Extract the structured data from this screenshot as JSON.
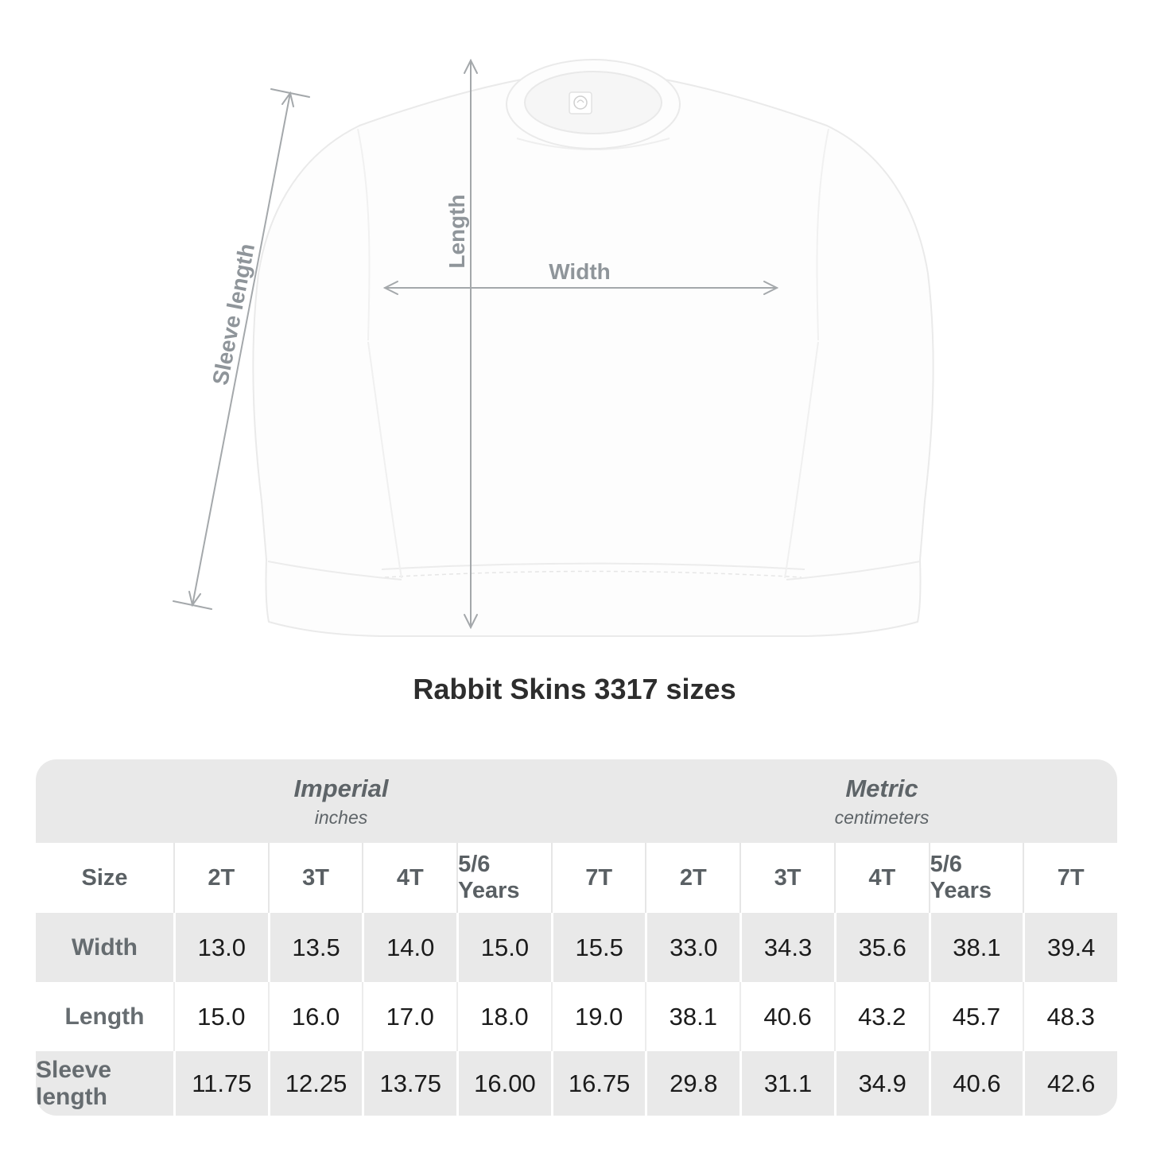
{
  "page": {
    "title": "Rabbit Skins 3317 sizes"
  },
  "diagram": {
    "garment": "white crewneck sweatshirt, front view, with brand neck tag",
    "labels": {
      "sleeve_length": "Sleeve length",
      "length": "Length",
      "width": "Width"
    }
  },
  "table": {
    "unit_groups": [
      {
        "name": "Imperial",
        "unit": "inches"
      },
      {
        "name": "Metric",
        "unit": "centimeters"
      }
    ],
    "size_header": "Size",
    "columns": [
      "2T",
      "3T",
      "4T",
      "5/6 Years",
      "7T",
      "2T",
      "3T",
      "4T",
      "5/6 Years",
      "7T"
    ],
    "rows": [
      {
        "label": "Width",
        "values": [
          "13.0",
          "13.5",
          "14.0",
          "15.0",
          "15.5",
          "33.0",
          "34.3",
          "35.6",
          "38.1",
          "39.4"
        ]
      },
      {
        "label": "Length",
        "values": [
          "15.0",
          "16.0",
          "17.0",
          "18.0",
          "19.0",
          "38.1",
          "40.6",
          "43.2",
          "45.7",
          "48.3"
        ]
      },
      {
        "label": "Sleeve length",
        "values": [
          "11.75",
          "12.25",
          "13.75",
          "16.00",
          "16.75",
          "29.8",
          "31.1",
          "34.9",
          "40.6",
          "42.6"
        ]
      }
    ]
  },
  "colors": {
    "background": "#ffffff",
    "table_band_gray": "#e9e9e9",
    "title_text": "#2d2d2d",
    "header_text": "#5a6064",
    "value_text": "#1b1b1b",
    "arrow_gray": "#a4a8ab",
    "arrow_label_gray": "#8f959a",
    "garment_outline": "#eaeaea"
  }
}
